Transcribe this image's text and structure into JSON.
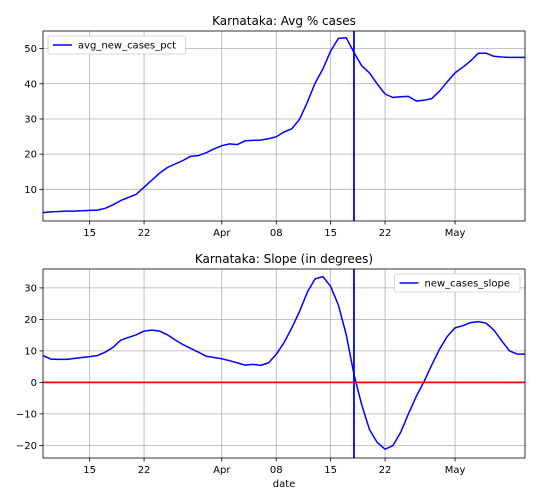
{
  "chart_data": [
    {
      "type": "line",
      "title": "Karnataka: Avg % cases",
      "xlabel": "",
      "ylabel": "",
      "xlim": [
        "2020-03-09",
        "2020-05-10"
      ],
      "ylim": [
        1,
        55
      ],
      "grid": true,
      "legend": "top-left",
      "x_tick_labels": [
        "15",
        "22",
        "Apr",
        "08",
        "15",
        "22",
        "May"
      ],
      "y_tick_labels": [
        "10",
        "20",
        "30",
        "40",
        "50"
      ],
      "series": [
        {
          "name": "avg_new_cases_pct",
          "color": "#0000ff",
          "x": [
            "2020-03-09",
            "2020-03-10",
            "2020-03-11",
            "2020-03-12",
            "2020-03-13",
            "2020-03-14",
            "2020-03-15",
            "2020-03-16",
            "2020-03-17",
            "2020-03-18",
            "2020-03-19",
            "2020-03-20",
            "2020-03-21",
            "2020-03-22",
            "2020-03-23",
            "2020-03-24",
            "2020-03-25",
            "2020-03-26",
            "2020-03-27",
            "2020-03-28",
            "2020-03-29",
            "2020-03-30",
            "2020-03-31",
            "2020-04-01",
            "2020-04-02",
            "2020-04-03",
            "2020-04-04",
            "2020-04-05",
            "2020-04-06",
            "2020-04-07",
            "2020-04-08",
            "2020-04-09",
            "2020-04-10",
            "2020-04-11",
            "2020-04-12",
            "2020-04-13",
            "2020-04-14",
            "2020-04-15",
            "2020-04-16",
            "2020-04-17",
            "2020-04-18",
            "2020-04-19",
            "2020-04-20",
            "2020-04-21",
            "2020-04-22",
            "2020-04-23",
            "2020-04-24",
            "2020-04-25",
            "2020-04-26",
            "2020-04-27",
            "2020-04-28",
            "2020-04-29",
            "2020-04-30",
            "2020-05-01",
            "2020-05-02",
            "2020-05-03",
            "2020-05-04",
            "2020-05-05",
            "2020-05-06",
            "2020-05-07",
            "2020-05-08",
            "2020-05-09",
            "2020-05-10"
          ],
          "values": [
            3.4,
            3.6,
            3.7,
            3.8,
            3.8,
            3.9,
            4.0,
            4.1,
            4.6,
            5.6,
            6.8,
            7.7,
            8.6,
            10.6,
            12.6,
            14.6,
            16.2,
            17.2,
            18.2,
            19.4,
            19.6,
            20.4,
            21.5,
            22.4,
            22.9,
            22.7,
            23.8,
            23.9,
            24.0,
            24.4,
            24.9,
            26.3,
            27.2,
            29.9,
            34.7,
            40.2,
            44.2,
            49.3,
            52.9,
            53.1,
            48.9,
            45.1,
            43.1,
            39.9,
            37.1,
            36.1,
            36.3,
            36.4,
            35.1,
            35.3,
            35.8,
            37.9,
            40.6,
            43.1,
            44.7,
            46.5,
            48.7,
            48.7,
            47.8,
            47.6,
            47.5,
            47.5,
            47.5
          ]
        }
      ],
      "vline": {
        "x": "2020-04-18",
        "color": "#0000ff"
      }
    },
    {
      "type": "line",
      "title": "Karnataka: Slope (in degrees)",
      "xlabel": "date",
      "ylabel": "",
      "xlim": [
        "2020-03-09",
        "2020-05-10"
      ],
      "ylim": [
        -24,
        36
      ],
      "grid": true,
      "legend": "top-right",
      "x_tick_labels": [
        "15",
        "22",
        "Apr",
        "08",
        "15",
        "22",
        "May"
      ],
      "y_tick_labels": [
        "−20",
        "−10",
        "0",
        "10",
        "20",
        "30"
      ],
      "series": [
        {
          "name": "new_cases_slope",
          "color": "#0000ff",
          "x": [
            "2020-03-09",
            "2020-03-10",
            "2020-03-11",
            "2020-03-12",
            "2020-03-13",
            "2020-03-14",
            "2020-03-15",
            "2020-03-16",
            "2020-03-17",
            "2020-03-18",
            "2020-03-19",
            "2020-03-20",
            "2020-03-21",
            "2020-03-22",
            "2020-03-23",
            "2020-03-24",
            "2020-03-25",
            "2020-03-26",
            "2020-03-27",
            "2020-03-28",
            "2020-03-29",
            "2020-03-30",
            "2020-03-31",
            "2020-04-01",
            "2020-04-02",
            "2020-04-03",
            "2020-04-04",
            "2020-04-05",
            "2020-04-06",
            "2020-04-07",
            "2020-04-08",
            "2020-04-09",
            "2020-04-10",
            "2020-04-11",
            "2020-04-12",
            "2020-04-13",
            "2020-04-14",
            "2020-04-15",
            "2020-04-16",
            "2020-04-17",
            "2020-04-18",
            "2020-04-19",
            "2020-04-20",
            "2020-04-21",
            "2020-04-22",
            "2020-04-23",
            "2020-04-24",
            "2020-04-25",
            "2020-04-26",
            "2020-04-27",
            "2020-04-28",
            "2020-04-29",
            "2020-04-30",
            "2020-05-01",
            "2020-05-02",
            "2020-05-03",
            "2020-05-04",
            "2020-05-05",
            "2020-05-06",
            "2020-05-07",
            "2020-05-08",
            "2020-05-09",
            "2020-05-10"
          ],
          "values": [
            8.5,
            7.4,
            7.3,
            7.3,
            7.6,
            7.9,
            8.2,
            8.5,
            9.6,
            11.1,
            13.4,
            14.3,
            15.1,
            16.3,
            16.6,
            16.3,
            15.1,
            13.5,
            12.0,
            10.8,
            9.6,
            8.3,
            7.9,
            7.5,
            6.9,
            6.2,
            5.5,
            5.7,
            5.4,
            6.2,
            8.9,
            12.6,
            17.3,
            22.5,
            28.6,
            32.9,
            33.6,
            30.5,
            24.5,
            15.2,
            2.5,
            -7.1,
            -15.0,
            -19.1,
            -21.2,
            -20.1,
            -15.9,
            -10.0,
            -4.5,
            0.2,
            5.5,
            10.5,
            14.6,
            17.3,
            18.0,
            19.0,
            19.3,
            18.8,
            16.6,
            13.2,
            10.0,
            9.0,
            9.0
          ]
        }
      ],
      "vline": {
        "x": "2020-04-18",
        "color": "#0000ff"
      },
      "hline": {
        "y": 0,
        "color": "#ff0000"
      }
    }
  ]
}
